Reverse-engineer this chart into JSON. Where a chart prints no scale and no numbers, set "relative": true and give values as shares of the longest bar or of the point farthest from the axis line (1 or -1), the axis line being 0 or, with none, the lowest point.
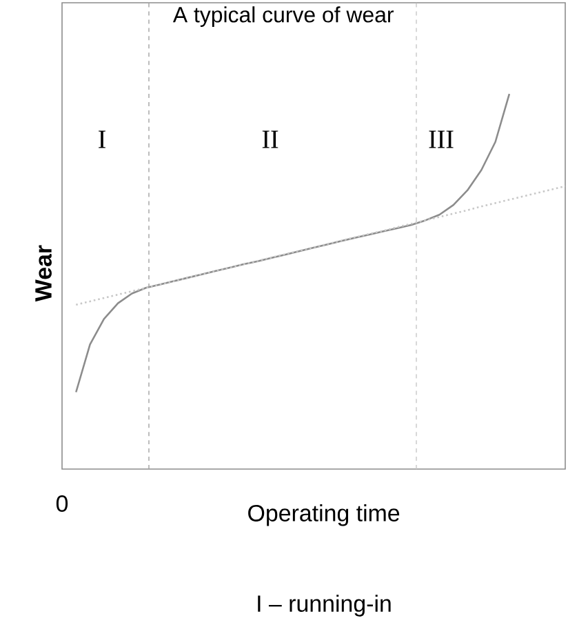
{
  "chart_data": {
    "type": "line",
    "title": "A typical curve of wear",
    "xlabel": "Operating time",
    "ylabel": "Wear",
    "relative": true,
    "marker": "none",
    "categories": [
      null,
      null,
      null,
      null,
      null,
      null,
      null,
      null,
      null,
      null,
      null,
      null,
      null,
      null,
      null,
      null,
      null,
      null,
      null,
      null,
      null,
      null,
      null,
      null,
      null,
      null,
      null,
      null,
      null,
      null,
      null,
      null,
      null,
      null,
      null,
      null,
      null
    ],
    "series": [
      {
        "color": "#8c8c8c",
        "line_style": "solid",
        "values": [
          null,
          0.205,
          0.332,
          0.4,
          0.442,
          0.468,
          0.483,
          0.492,
          0.501,
          0.51,
          0.519,
          0.528,
          0.537,
          0.546,
          0.554,
          0.563,
          0.572,
          0.581,
          0.59,
          0.599,
          0.608,
          0.617,
          0.625,
          0.634,
          0.642,
          0.651,
          0.663,
          0.678,
          0.704,
          0.743,
          0.797,
          0.872,
          1.0,
          null,
          null,
          null,
          null
        ]
      },
      {
        "color": "#c8c8c8",
        "line_style": "dotted",
        "values": [
          null,
          0.438,
          0.447,
          0.456,
          0.465,
          0.474,
          0.483,
          0.492,
          0.501,
          0.51,
          0.519,
          0.528,
          0.537,
          0.546,
          0.555,
          0.564,
          0.573,
          0.582,
          0.591,
          0.6,
          0.609,
          0.618,
          0.627,
          0.635,
          0.645,
          0.654,
          0.663,
          0.672,
          0.681,
          0.69,
          0.7,
          0.709,
          0.718,
          0.727,
          0.736,
          0.745,
          0.754
        ]
      }
    ],
    "annotations": [
      "I",
      "II",
      "III",
      "0",
      "I – running-in"
    ]
  }
}
